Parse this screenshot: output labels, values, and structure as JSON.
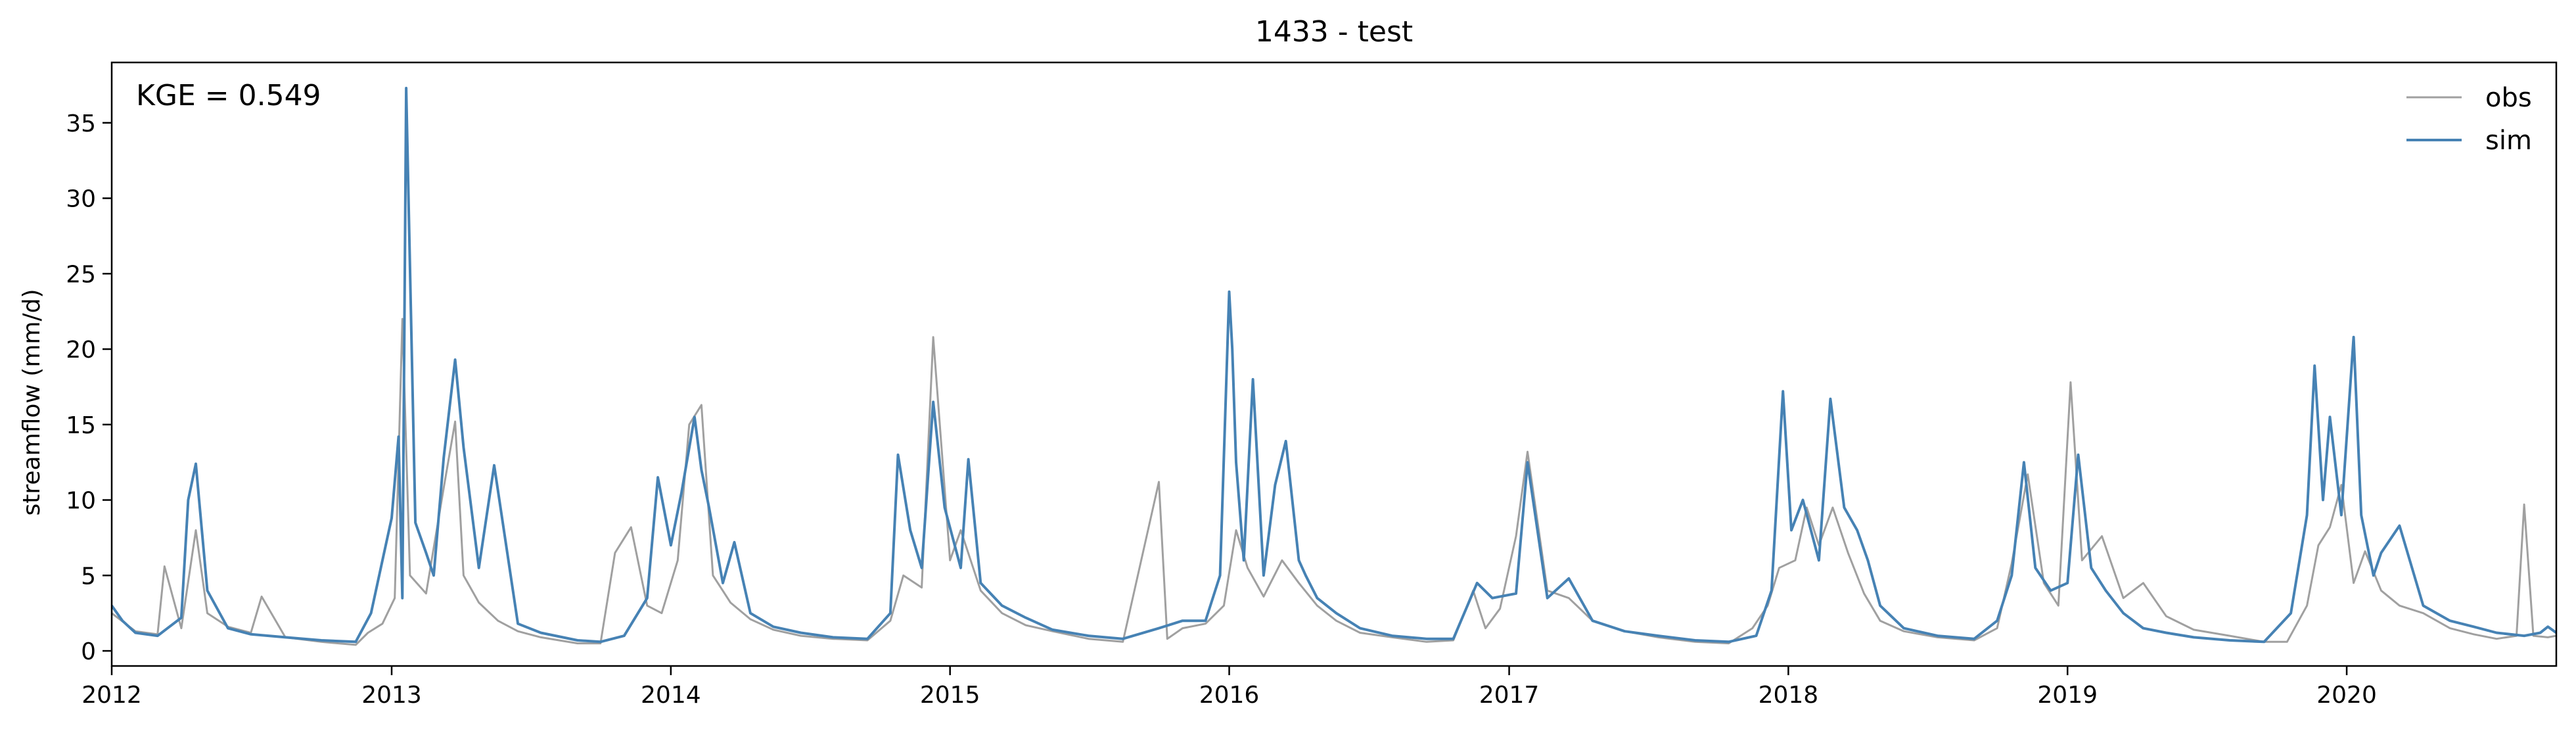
{
  "chart_data": {
    "type": "line",
    "title": "1433 - test",
    "xlabel": "",
    "ylabel": "streamflow (mm/d)",
    "xlim": [
      "2012-01-01",
      "2020-10-01"
    ],
    "ylim": [
      -1,
      39
    ],
    "xticks": [
      "2012",
      "2013",
      "2014",
      "2015",
      "2016",
      "2017",
      "2018",
      "2019",
      "2020"
    ],
    "yticks": [
      0,
      5,
      10,
      15,
      20,
      25,
      30,
      35
    ],
    "grid": false,
    "legend_position": "top-right",
    "annotation": "KGE = 0.549",
    "series": [
      {
        "name": "obs",
        "color": "#a0a0a0",
        "x": [
          "2012-01-01",
          "2012-02-01",
          "2012-03-01",
          "2012-03-10",
          "2012-04-01",
          "2012-04-20",
          "2012-05-05",
          "2012-06-01",
          "2012-07-01",
          "2012-07-15",
          "2012-08-15",
          "2012-10-01",
          "2012-11-15",
          "2012-12-01",
          "2012-12-20",
          "2013-01-05",
          "2013-01-15",
          "2013-01-25",
          "2013-02-15",
          "2013-03-10",
          "2013-03-25",
          "2013-04-05",
          "2013-04-25",
          "2013-05-20",
          "2013-06-15",
          "2013-07-15",
          "2013-09-01",
          "2013-10-01",
          "2013-10-20",
          "2013-11-10",
          "2013-12-01",
          "2013-12-20",
          "2014-01-10",
          "2014-01-25",
          "2014-02-10",
          "2014-02-25",
          "2014-03-20",
          "2014-04-15",
          "2014-05-15",
          "2014-06-20",
          "2014-08-01",
          "2014-09-15",
          "2014-10-15",
          "2014-11-01",
          "2014-11-25",
          "2014-12-10",
          "2015-01-01",
          "2015-01-15",
          "2015-02-10",
          "2015-03-10",
          "2015-04-10",
          "2015-05-15",
          "2015-07-01",
          "2015-08-15",
          "2015-10-01",
          "2015-10-12",
          "2015-11-01",
          "2015-12-01",
          "2015-12-25",
          "2016-01-10",
          "2016-01-25",
          "2016-02-15",
          "2016-03-10",
          "2016-04-01",
          "2016-04-25",
          "2016-05-20",
          "2016-06-20",
          "2016-08-01",
          "2016-09-15",
          "2016-10-20",
          "2016-11-15",
          "2016-12-01",
          "2016-12-20",
          "2017-01-10",
          "2017-01-25",
          "2017-02-20",
          "2017-03-20",
          "2017-04-20",
          "2017-06-01",
          "2017-07-15",
          "2017-09-01",
          "2017-10-15",
          "2017-11-15",
          "2017-12-05",
          "2017-12-20",
          "2018-01-10",
          "2018-01-25",
          "2018-02-10",
          "2018-02-28",
          "2018-03-20",
          "2018-04-10",
          "2018-05-01",
          "2018-06-01",
          "2018-07-15",
          "2018-09-01",
          "2018-10-01",
          "2018-10-20",
          "2018-11-10",
          "2018-12-01",
          "2018-12-20",
          "2019-01-05",
          "2019-01-20",
          "2019-02-15",
          "2019-03-15",
          "2019-04-10",
          "2019-05-10",
          "2019-06-15",
          "2019-08-01",
          "2019-09-15",
          "2019-10-15",
          "2019-11-10",
          "2019-11-25",
          "2019-12-10",
          "2019-12-25",
          "2020-01-10",
          "2020-01-25",
          "2020-02-15",
          "2020-03-10",
          "2020-04-10",
          "2020-05-15",
          "2020-06-15",
          "2020-07-15",
          "2020-08-10",
          "2020-08-20",
          "2020-09-01",
          "2020-09-20",
          "2020-10-01"
        ],
        "values": [
          2.5,
          1.3,
          1.1,
          5.6,
          1.5,
          8.0,
          2.5,
          1.6,
          1.2,
          3.6,
          0.9,
          0.6,
          0.4,
          1.2,
          1.8,
          3.5,
          22.0,
          5.0,
          3.8,
          10.8,
          15.2,
          5.0,
          3.2,
          2.0,
          1.3,
          0.9,
          0.5,
          0.5,
          6.5,
          8.2,
          3.0,
          2.5,
          6.0,
          15.0,
          16.3,
          5.0,
          3.2,
          2.1,
          1.4,
          1.0,
          0.8,
          0.7,
          2.0,
          5.0,
          4.2,
          20.8,
          6.0,
          8.0,
          4.0,
          2.5,
          1.7,
          1.3,
          0.8,
          0.6,
          11.2,
          0.8,
          1.5,
          1.8,
          3.0,
          8.0,
          5.5,
          3.6,
          6.0,
          4.5,
          3.0,
          2.0,
          1.2,
          0.9,
          0.6,
          0.7,
          4.0,
          1.5,
          2.8,
          7.6,
          13.2,
          4.0,
          3.5,
          2.0,
          1.3,
          0.9,
          0.6,
          0.5,
          1.5,
          3.0,
          5.5,
          6.0,
          9.5,
          7.0,
          9.5,
          6.5,
          3.8,
          2.0,
          1.3,
          0.9,
          0.7,
          1.5,
          5.8,
          11.7,
          4.5,
          3.0,
          17.8,
          6.0,
          7.6,
          3.5,
          4.5,
          2.3,
          1.4,
          1.0,
          0.6,
          0.6,
          3.0,
          7.0,
          8.2,
          11.0,
          4.5,
          6.6,
          4.0,
          3.0,
          2.5,
          1.5,
          1.1,
          0.8,
          1.0,
          9.7,
          1.0,
          0.9,
          1.0
        ]
      },
      {
        "name": "sim",
        "color": "#4682b4",
        "x": [
          "2012-01-01",
          "2012-01-15",
          "2012-02-01",
          "2012-03-01",
          "2012-04-01",
          "2012-04-10",
          "2012-04-20",
          "2012-05-05",
          "2012-06-01",
          "2012-07-01",
          "2012-08-15",
          "2012-10-01",
          "2012-11-15",
          "2012-12-05",
          "2012-12-20",
          "2013-01-01",
          "2013-01-10",
          "2013-01-15",
          "2013-01-20",
          "2013-02-01",
          "2013-02-15",
          "2013-02-25",
          "2013-03-10",
          "2013-03-25",
          "2013-04-05",
          "2013-04-25",
          "2013-05-15",
          "2013-06-15",
          "2013-07-15",
          "2013-09-01",
          "2013-10-01",
          "2013-11-01",
          "2013-12-01",
          "2013-12-15",
          "2014-01-01",
          "2014-01-15",
          "2014-02-01",
          "2014-02-10",
          "2014-02-20",
          "2014-03-10",
          "2014-03-25",
          "2014-04-15",
          "2014-05-15",
          "2014-06-20",
          "2014-08-01",
          "2014-09-15",
          "2014-10-15",
          "2014-10-25",
          "2014-11-10",
          "2014-11-25",
          "2014-12-10",
          "2014-12-25",
          "2015-01-15",
          "2015-01-25",
          "2015-02-10",
          "2015-03-10",
          "2015-04-10",
          "2015-05-15",
          "2015-07-01",
          "2015-08-15",
          "2015-10-01",
          "2015-11-01",
          "2015-12-01",
          "2015-12-20",
          "2016-01-01",
          "2016-01-05",
          "2016-01-10",
          "2016-01-20",
          "2016-02-01",
          "2016-02-15",
          "2016-03-01",
          "2016-03-15",
          "2016-04-01",
          "2016-04-10",
          "2016-04-25",
          "2016-05-20",
          "2016-06-20",
          "2016-08-01",
          "2016-09-15",
          "2016-10-20",
          "2016-11-20",
          "2016-12-10",
          "2017-01-10",
          "2017-01-25",
          "2017-02-20",
          "2017-03-20",
          "2017-04-20",
          "2017-06-01",
          "2017-07-15",
          "2017-09-01",
          "2017-10-15",
          "2017-11-20",
          "2017-12-10",
          "2017-12-25",
          "2018-01-05",
          "2018-01-20",
          "2018-02-10",
          "2018-02-25",
          "2018-03-15",
          "2018-04-01",
          "2018-04-15",
          "2018-05-01",
          "2018-06-01",
          "2018-07-15",
          "2018-09-01",
          "2018-10-01",
          "2018-10-20",
          "2018-11-05",
          "2018-11-20",
          "2018-12-10",
          "2019-01-01",
          "2019-01-15",
          "2019-02-01",
          "2019-02-20",
          "2019-03-15",
          "2019-04-10",
          "2019-05-10",
          "2019-06-15",
          "2019-08-01",
          "2019-09-15",
          "2019-10-20",
          "2019-11-10",
          "2019-11-20",
          "2019-12-01",
          "2019-12-10",
          "2019-12-25",
          "2020-01-10",
          "2020-01-20",
          "2020-02-05",
          "2020-02-15",
          "2020-03-10",
          "2020-04-10",
          "2020-05-15",
          "2020-06-15",
          "2020-07-15",
          "2020-08-20",
          "2020-09-10",
          "2020-09-20",
          "2020-10-01"
        ],
        "values": [
          3.0,
          2.0,
          1.2,
          1.0,
          2.2,
          10.0,
          12.4,
          4.0,
          1.5,
          1.1,
          0.9,
          0.7,
          0.6,
          2.5,
          6.0,
          8.8,
          14.2,
          3.5,
          37.3,
          8.5,
          6.5,
          5.0,
          12.8,
          19.3,
          13.5,
          5.5,
          12.3,
          1.8,
          1.2,
          0.7,
          0.6,
          1.0,
          3.5,
          11.5,
          7.0,
          10.5,
          15.5,
          12.0,
          9.5,
          4.5,
          7.2,
          2.5,
          1.6,
          1.2,
          0.9,
          0.8,
          2.5,
          13.0,
          8.0,
          5.5,
          16.5,
          9.5,
          5.5,
          12.7,
          4.5,
          3.0,
          2.2,
          1.4,
          1.0,
          0.8,
          1.5,
          2.0,
          2.0,
          5.0,
          23.8,
          20.0,
          12.5,
          6.0,
          18.0,
          5.0,
          11.0,
          13.9,
          6.0,
          5.0,
          3.5,
          2.5,
          1.5,
          1.0,
          0.8,
          0.8,
          4.5,
          3.5,
          3.8,
          12.5,
          3.5,
          4.8,
          2.0,
          1.3,
          1.0,
          0.7,
          0.6,
          1.0,
          4.0,
          17.2,
          8.0,
          10.0,
          6.0,
          16.7,
          9.5,
          8.0,
          6.0,
          3.0,
          1.5,
          1.0,
          0.8,
          2.0,
          5.0,
          12.5,
          5.5,
          4.0,
          4.5,
          13.0,
          5.5,
          4.0,
          2.5,
          1.5,
          1.2,
          0.9,
          0.7,
          0.6,
          2.5,
          9.0,
          18.9,
          10.0,
          15.5,
          9.0,
          20.8,
          9.0,
          5.0,
          6.5,
          8.3,
          3.0,
          2.0,
          1.6,
          1.2,
          1.0,
          1.2,
          1.6,
          1.2
        ]
      }
    ]
  }
}
